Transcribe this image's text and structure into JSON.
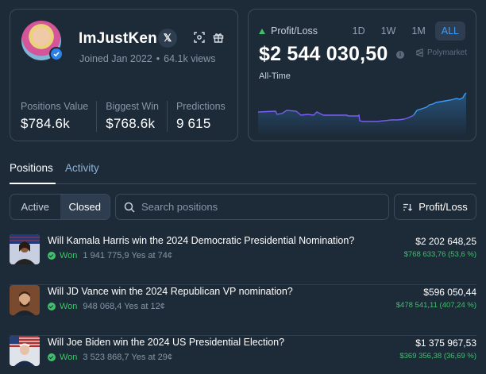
{
  "profile": {
    "username": "ImJustKen",
    "joined": "Joined Jan 2022",
    "views": "64.1k views",
    "x_label": "𝕏",
    "stats": [
      {
        "label": "Positions Value",
        "value": "$784.6k"
      },
      {
        "label": "Biggest Win",
        "value": "$768.6k"
      },
      {
        "label": "Predictions",
        "value": "9 615"
      }
    ]
  },
  "pnl": {
    "label": "Profit/Loss",
    "value": "$2 544 030,50",
    "brand": "Polymarket",
    "period": "All-Time",
    "ranges": [
      "1D",
      "1W",
      "1M",
      "ALL"
    ],
    "active_range": "ALL",
    "trend_color": "#3fc06a",
    "line_color": "#7a5cf0"
  },
  "tabs": {
    "positions": "Positions",
    "activity": "Activity"
  },
  "filters": {
    "active": "Active",
    "closed": "Closed",
    "search_placeholder": "Search positions",
    "sort_label": "Profit/Loss"
  },
  "positions": [
    {
      "title": "Will Kamala Harris win the 2024 Democratic Presidential Nomination?",
      "status": "Won",
      "detail": "1 941 775,9 Yes at 74¢",
      "value": "$2 202 648,25",
      "pnl": "$768 633,76 (53,6 %)"
    },
    {
      "title": "Will JD Vance win the 2024 Republican VP nomination?",
      "status": "Won",
      "detail": "948 068,4 Yes at 12¢",
      "value": "$596 050,44",
      "pnl": "$478 541,11 (407,24 %)"
    },
    {
      "title": "Will Joe Biden win the 2024 US Presidential Election?",
      "status": "Won",
      "detail": "3 523 868,7 Yes at 29¢",
      "value": "$1 375 967,53",
      "pnl": "$369 356,38 (36,69 %)"
    }
  ],
  "colors": {
    "background": "#1d2b39",
    "accent": "#3b9cf5",
    "positive": "#3fc06a"
  }
}
